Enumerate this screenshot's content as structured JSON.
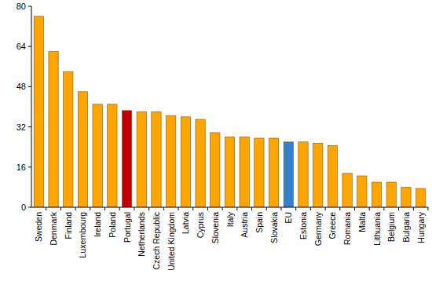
{
  "chart_data": {
    "type": "bar",
    "categories": [
      "Sweden",
      "Denmark",
      "Finland",
      "Luxembourg",
      "Ireland",
      "Poland",
      "Portugal",
      "Netherlands",
      "Czech Republic",
      "United Kingdom",
      "Latvia",
      "Cyprus",
      "Slovenia",
      "Italy",
      "Austria",
      "Spain",
      "Slovakia",
      "EU",
      "Estonia",
      "Germany",
      "Greece",
      "Romania",
      "Malta",
      "Lithuania",
      "Belgium",
      "Bulgaria",
      "Hungary"
    ],
    "values": [
      76,
      62,
      54,
      46,
      41,
      41,
      38.5,
      38,
      38,
      36.5,
      36,
      35,
      29.7,
      28,
      28,
      27.5,
      27.5,
      26,
      26,
      25.5,
      24.5,
      13.5,
      12.5,
      10,
      10,
      8,
      7.5
    ],
    "colors": [
      "#ffa500",
      "#ffa500",
      "#ffa500",
      "#ffa500",
      "#ffa500",
      "#ffa500",
      "#c00000",
      "#ffa500",
      "#ffa500",
      "#ffa500",
      "#ffa500",
      "#ffa500",
      "#ffa500",
      "#ffa500",
      "#ffa500",
      "#ffa500",
      "#ffa500",
      "#3380cc",
      "#ffa500",
      "#ffa500",
      "#ffa500",
      "#ffa500",
      "#ffa500",
      "#ffa500",
      "#ffa500",
      "#ffa500",
      "#ffa500"
    ],
    "ylim": [
      0,
      80
    ],
    "yticks": [
      0,
      16,
      32,
      48,
      64,
      80
    ],
    "grid": false
  }
}
